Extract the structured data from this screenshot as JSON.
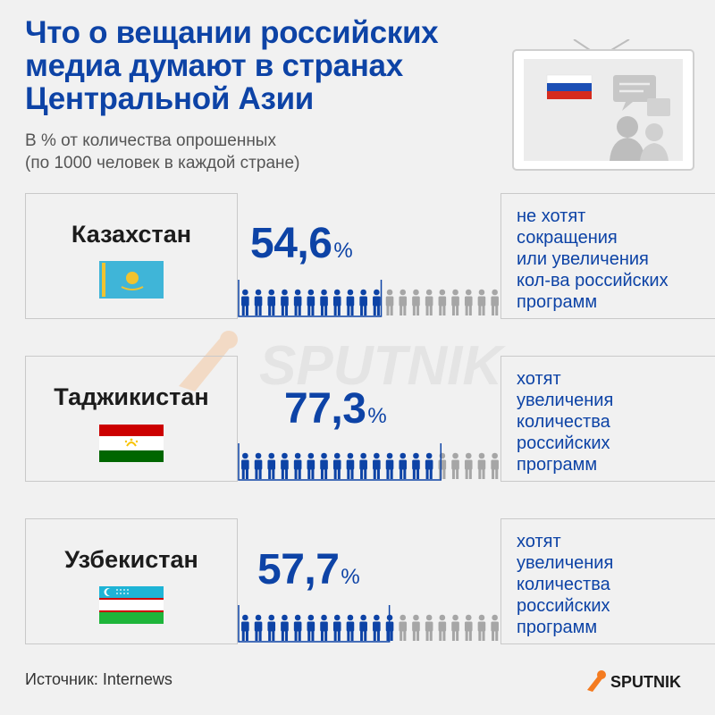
{
  "title_lines": [
    "Что о вещании российских",
    "медиа думают в странах",
    "Центральной Азии"
  ],
  "subtitle_lines": [
    "В % от количества опрошенных",
    "(по 1000 человек в каждой стране)"
  ],
  "rows": [
    {
      "country": "Казахстан",
      "value_text": "54,6",
      "percent_sign": "%",
      "desc_lines": [
        "не хотят",
        "сокращения",
        "или увеличения",
        "кол-ва российских",
        "программ"
      ]
    },
    {
      "country": "Таджикистан",
      "value_text": "77,3",
      "percent_sign": "%",
      "desc_lines": [
        "хотят",
        "увеличения",
        "количества",
        "российских",
        "программ"
      ]
    },
    {
      "country": "Узбекистан",
      "value_text": "57,7",
      "percent_sign": "%",
      "desc_lines": [
        "хотят",
        "увеличения",
        "количества",
        "российских",
        "программ"
      ]
    }
  ],
  "chart_data": {
    "type": "bar",
    "categories": [
      "Казахстан",
      "Таджикистан",
      "Узбекистан"
    ],
    "values": [
      54.6,
      77.3,
      57.7
    ],
    "title": "Что о вещании российских медиа думают в странах Центральной Азии",
    "subtitle": "В % от количества опрошенных (по 1000 человек в каждой стране)",
    "ylim": [
      0,
      100
    ],
    "icons_total": 20
  },
  "source": "Источник: Internews",
  "brand": "SPUTNIK",
  "watermark": "SPUTNIK",
  "colors": {
    "accent": "#0d43a6",
    "inactive": "#a6a6a6",
    "brand_orange": "#f47b20",
    "background": "#f1f1f1"
  }
}
